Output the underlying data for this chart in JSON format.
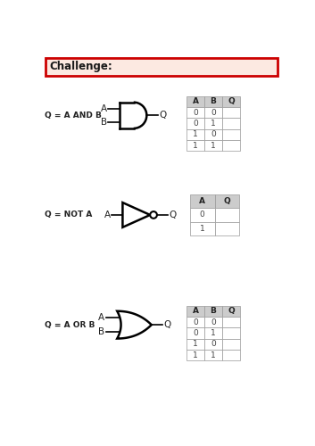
{
  "title": "Challenge:",
  "title_bg": "#fce9e1",
  "title_border": "#cc0000",
  "bg_color": "#ffffff",
  "gate1_label": "Q = A AND B",
  "gate2_label": "Q = NOT A",
  "gate3_label": "Q = A OR B",
  "table1_headers": [
    "A",
    "B",
    "Q"
  ],
  "table1_rows": [
    [
      "0",
      "0",
      ""
    ],
    [
      "0",
      "1",
      ""
    ],
    [
      "1",
      "0",
      ""
    ],
    [
      "1",
      "1",
      ""
    ]
  ],
  "table2_headers": [
    "A",
    "Q"
  ],
  "table2_rows": [
    [
      "0",
      ""
    ],
    [
      "1",
      ""
    ]
  ],
  "table3_headers": [
    "A",
    "B",
    "Q"
  ],
  "table3_rows": [
    [
      "0",
      "0",
      ""
    ],
    [
      "0",
      "1",
      ""
    ],
    [
      "1",
      "0",
      ""
    ],
    [
      "1",
      "1",
      ""
    ]
  ]
}
